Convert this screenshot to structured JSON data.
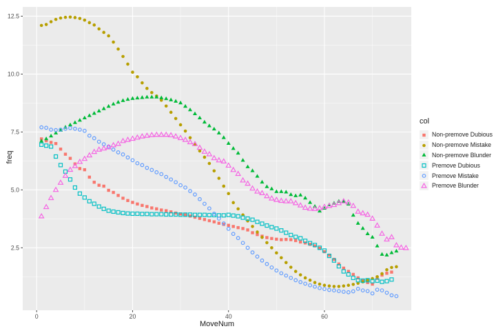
{
  "figure": {
    "background": "#FFFFFF",
    "panel_background": "#EBEBEB",
    "grid_color": "#FFFFFF",
    "tick_color": "#333333",
    "tick_label_color": "#4D4D4D",
    "key_background": "#F2F2F2"
  },
  "chart_data": {
    "type": "scatter",
    "title": "",
    "xlabel": "MoveNum",
    "ylabel": "freq",
    "legend_title": "col",
    "legend_position": "right",
    "grid": true,
    "xlim": [
      -2.9,
      78.1
    ],
    "ylim": [
      -0.2,
      12.9
    ],
    "x_ticks": [
      0,
      20,
      40,
      60
    ],
    "y_ticks": [
      2.5,
      5.0,
      7.5,
      10.0,
      12.5
    ],
    "x_minor": [
      10,
      30,
      50,
      70
    ],
    "y_minor": [
      1.25,
      3.75,
      6.25,
      8.75,
      11.25
    ],
    "x_start": 1,
    "x_step": 1,
    "series": [
      {
        "name": "Non-premove Dubious",
        "marker": "square",
        "fill": "solid",
        "color": "#F8766D",
        "y": [
          7.2,
          7.12,
          7.05,
          7.0,
          6.76,
          6.54,
          6.36,
          6.12,
          5.92,
          5.87,
          5.55,
          5.33,
          5.2,
          5.16,
          4.98,
          4.89,
          4.76,
          4.64,
          4.54,
          4.46,
          4.39,
          4.33,
          4.28,
          4.22,
          4.18,
          4.13,
          4.1,
          4.05,
          4.0,
          3.96,
          3.92,
          3.87,
          3.82,
          3.77,
          3.72,
          3.67,
          3.62,
          3.56,
          3.51,
          3.47,
          3.42,
          3.37,
          3.33,
          3.27,
          3.15,
          3.07,
          3.0,
          2.94,
          2.9,
          2.87,
          2.85,
          2.86,
          2.85,
          2.81,
          2.75,
          2.71,
          2.65,
          2.58,
          2.48,
          2.33,
          2.18,
          2.0,
          1.8,
          1.62,
          1.48,
          1.35,
          1.2,
          1.08,
          1.0,
          0.93,
          1.18,
          1.32,
          1.4,
          1.45
        ]
      },
      {
        "name": "Non-premove Mistake",
        "marker": "circle",
        "fill": "solid",
        "color": "#B79F00",
        "y": [
          12.1,
          12.14,
          12.26,
          12.36,
          12.42,
          12.45,
          12.46,
          12.44,
          12.4,
          12.33,
          12.22,
          12.12,
          11.95,
          11.8,
          11.65,
          11.38,
          11.08,
          10.76,
          10.43,
          10.08,
          9.88,
          9.62,
          9.38,
          9.2,
          9.05,
          8.87,
          8.62,
          8.35,
          8.08,
          7.81,
          7.54,
          7.25,
          6.96,
          6.68,
          6.41,
          6.14,
          5.82,
          5.5,
          5.16,
          4.84,
          4.45,
          4.18,
          3.92,
          3.66,
          3.42,
          3.18,
          2.95,
          2.72,
          2.5,
          2.28,
          2.07,
          1.86,
          1.66,
          1.48,
          1.33,
          1.2,
          1.1,
          1.0,
          0.93,
          0.88,
          0.85,
          0.83,
          0.83,
          0.85,
          0.88,
          0.92,
          0.97,
          1.03,
          1.1,
          1.17,
          1.25,
          1.38,
          1.55,
          1.65,
          1.68
        ]
      },
      {
        "name": "Non-premove Blunder",
        "marker": "triangle",
        "fill": "solid",
        "color": "#00BA38",
        "y": [
          7.1,
          7.2,
          7.32,
          7.45,
          7.57,
          7.7,
          7.8,
          7.9,
          8.0,
          8.1,
          8.2,
          8.3,
          8.4,
          8.5,
          8.6,
          8.7,
          8.78,
          8.85,
          8.9,
          8.94,
          8.96,
          8.98,
          9.0,
          9.0,
          9.0,
          8.97,
          8.93,
          8.88,
          8.82,
          8.75,
          8.6,
          8.45,
          8.28,
          8.1,
          7.92,
          7.76,
          7.62,
          7.45,
          7.25,
          7.0,
          6.78,
          6.58,
          6.27,
          5.99,
          5.82,
          5.58,
          5.33,
          5.13,
          5.04,
          4.92,
          4.92,
          4.9,
          4.79,
          4.74,
          4.77,
          4.64,
          4.45,
          4.28,
          4.08,
          4.2,
          4.35,
          4.42,
          4.5,
          4.48,
          4.38,
          3.9,
          3.55,
          3.33,
          3.1,
          2.95,
          2.57,
          2.21,
          2.18,
          2.28,
          2.35
        ]
      },
      {
        "name": "Premove Dubious",
        "marker": "square",
        "fill": "open",
        "color": "#00BFC4",
        "y": [
          6.95,
          6.91,
          6.87,
          6.44,
          6.07,
          5.79,
          5.45,
          5.1,
          4.84,
          4.67,
          4.51,
          4.4,
          4.28,
          4.18,
          4.1,
          4.06,
          4.03,
          4.0,
          3.98,
          3.97,
          3.97,
          3.96,
          3.96,
          3.95,
          3.95,
          3.95,
          3.94,
          3.94,
          3.94,
          3.93,
          3.93,
          3.93,
          3.92,
          3.92,
          3.92,
          3.91,
          3.91,
          3.9,
          3.9,
          3.92,
          3.89,
          3.86,
          3.8,
          3.76,
          3.71,
          3.62,
          3.54,
          3.46,
          3.39,
          3.33,
          3.25,
          3.15,
          3.05,
          2.97,
          2.91,
          2.8,
          2.7,
          2.62,
          2.5,
          2.38,
          2.15,
          1.95,
          1.7,
          1.48,
          1.35,
          1.2,
          1.1,
          1.08,
          1.1,
          1.06,
          1.08,
          1.03,
          1.06,
          1.13
        ]
      },
      {
        "name": "Premove Mistake",
        "marker": "circle",
        "fill": "open",
        "color": "#619CFF",
        "y": [
          7.7,
          7.68,
          7.6,
          7.58,
          7.6,
          7.64,
          7.67,
          7.64,
          7.6,
          7.55,
          7.34,
          7.23,
          7.08,
          6.97,
          6.87,
          6.74,
          6.62,
          6.53,
          6.4,
          6.28,
          6.15,
          6.07,
          5.95,
          5.86,
          5.76,
          5.68,
          5.56,
          5.45,
          5.33,
          5.2,
          5.1,
          4.95,
          4.8,
          4.6,
          4.4,
          4.2,
          3.97,
          3.76,
          3.55,
          3.32,
          3.1,
          2.92,
          2.71,
          2.5,
          2.3,
          2.12,
          1.95,
          1.8,
          1.65,
          1.52,
          1.4,
          1.3,
          1.2,
          1.1,
          1.02,
          0.95,
          0.88,
          0.82,
          0.76,
          0.72,
          0.68,
          0.66,
          0.63,
          0.6,
          0.58,
          0.62,
          0.73,
          0.66,
          0.63,
          0.53,
          0.69,
          0.66,
          0.56,
          0.45,
          0.41
        ]
      },
      {
        "name": "Premove Blunder",
        "marker": "triangle",
        "fill": "open",
        "color": "#F564E3",
        "y": [
          3.85,
          4.25,
          4.64,
          4.99,
          5.3,
          5.6,
          5.86,
          6.02,
          6.2,
          6.33,
          6.48,
          6.63,
          6.73,
          6.78,
          6.83,
          6.92,
          6.98,
          7.1,
          7.15,
          7.2,
          7.25,
          7.3,
          7.33,
          7.36,
          7.37,
          7.37,
          7.37,
          7.35,
          7.3,
          7.23,
          7.15,
          7.05,
          6.97,
          6.81,
          6.64,
          6.53,
          6.36,
          6.27,
          6.22,
          6.04,
          5.85,
          5.68,
          5.4,
          5.26,
          5.05,
          4.92,
          4.85,
          4.72,
          4.62,
          4.56,
          4.52,
          4.5,
          4.5,
          4.42,
          4.32,
          4.22,
          4.18,
          4.17,
          4.2,
          4.26,
          4.3,
          4.34,
          4.42,
          4.5,
          4.45,
          4.3,
          4.05,
          3.98,
          3.92,
          3.75,
          3.45,
          3.1,
          2.85,
          2.95,
          2.6,
          2.5,
          2.48
        ]
      }
    ]
  }
}
